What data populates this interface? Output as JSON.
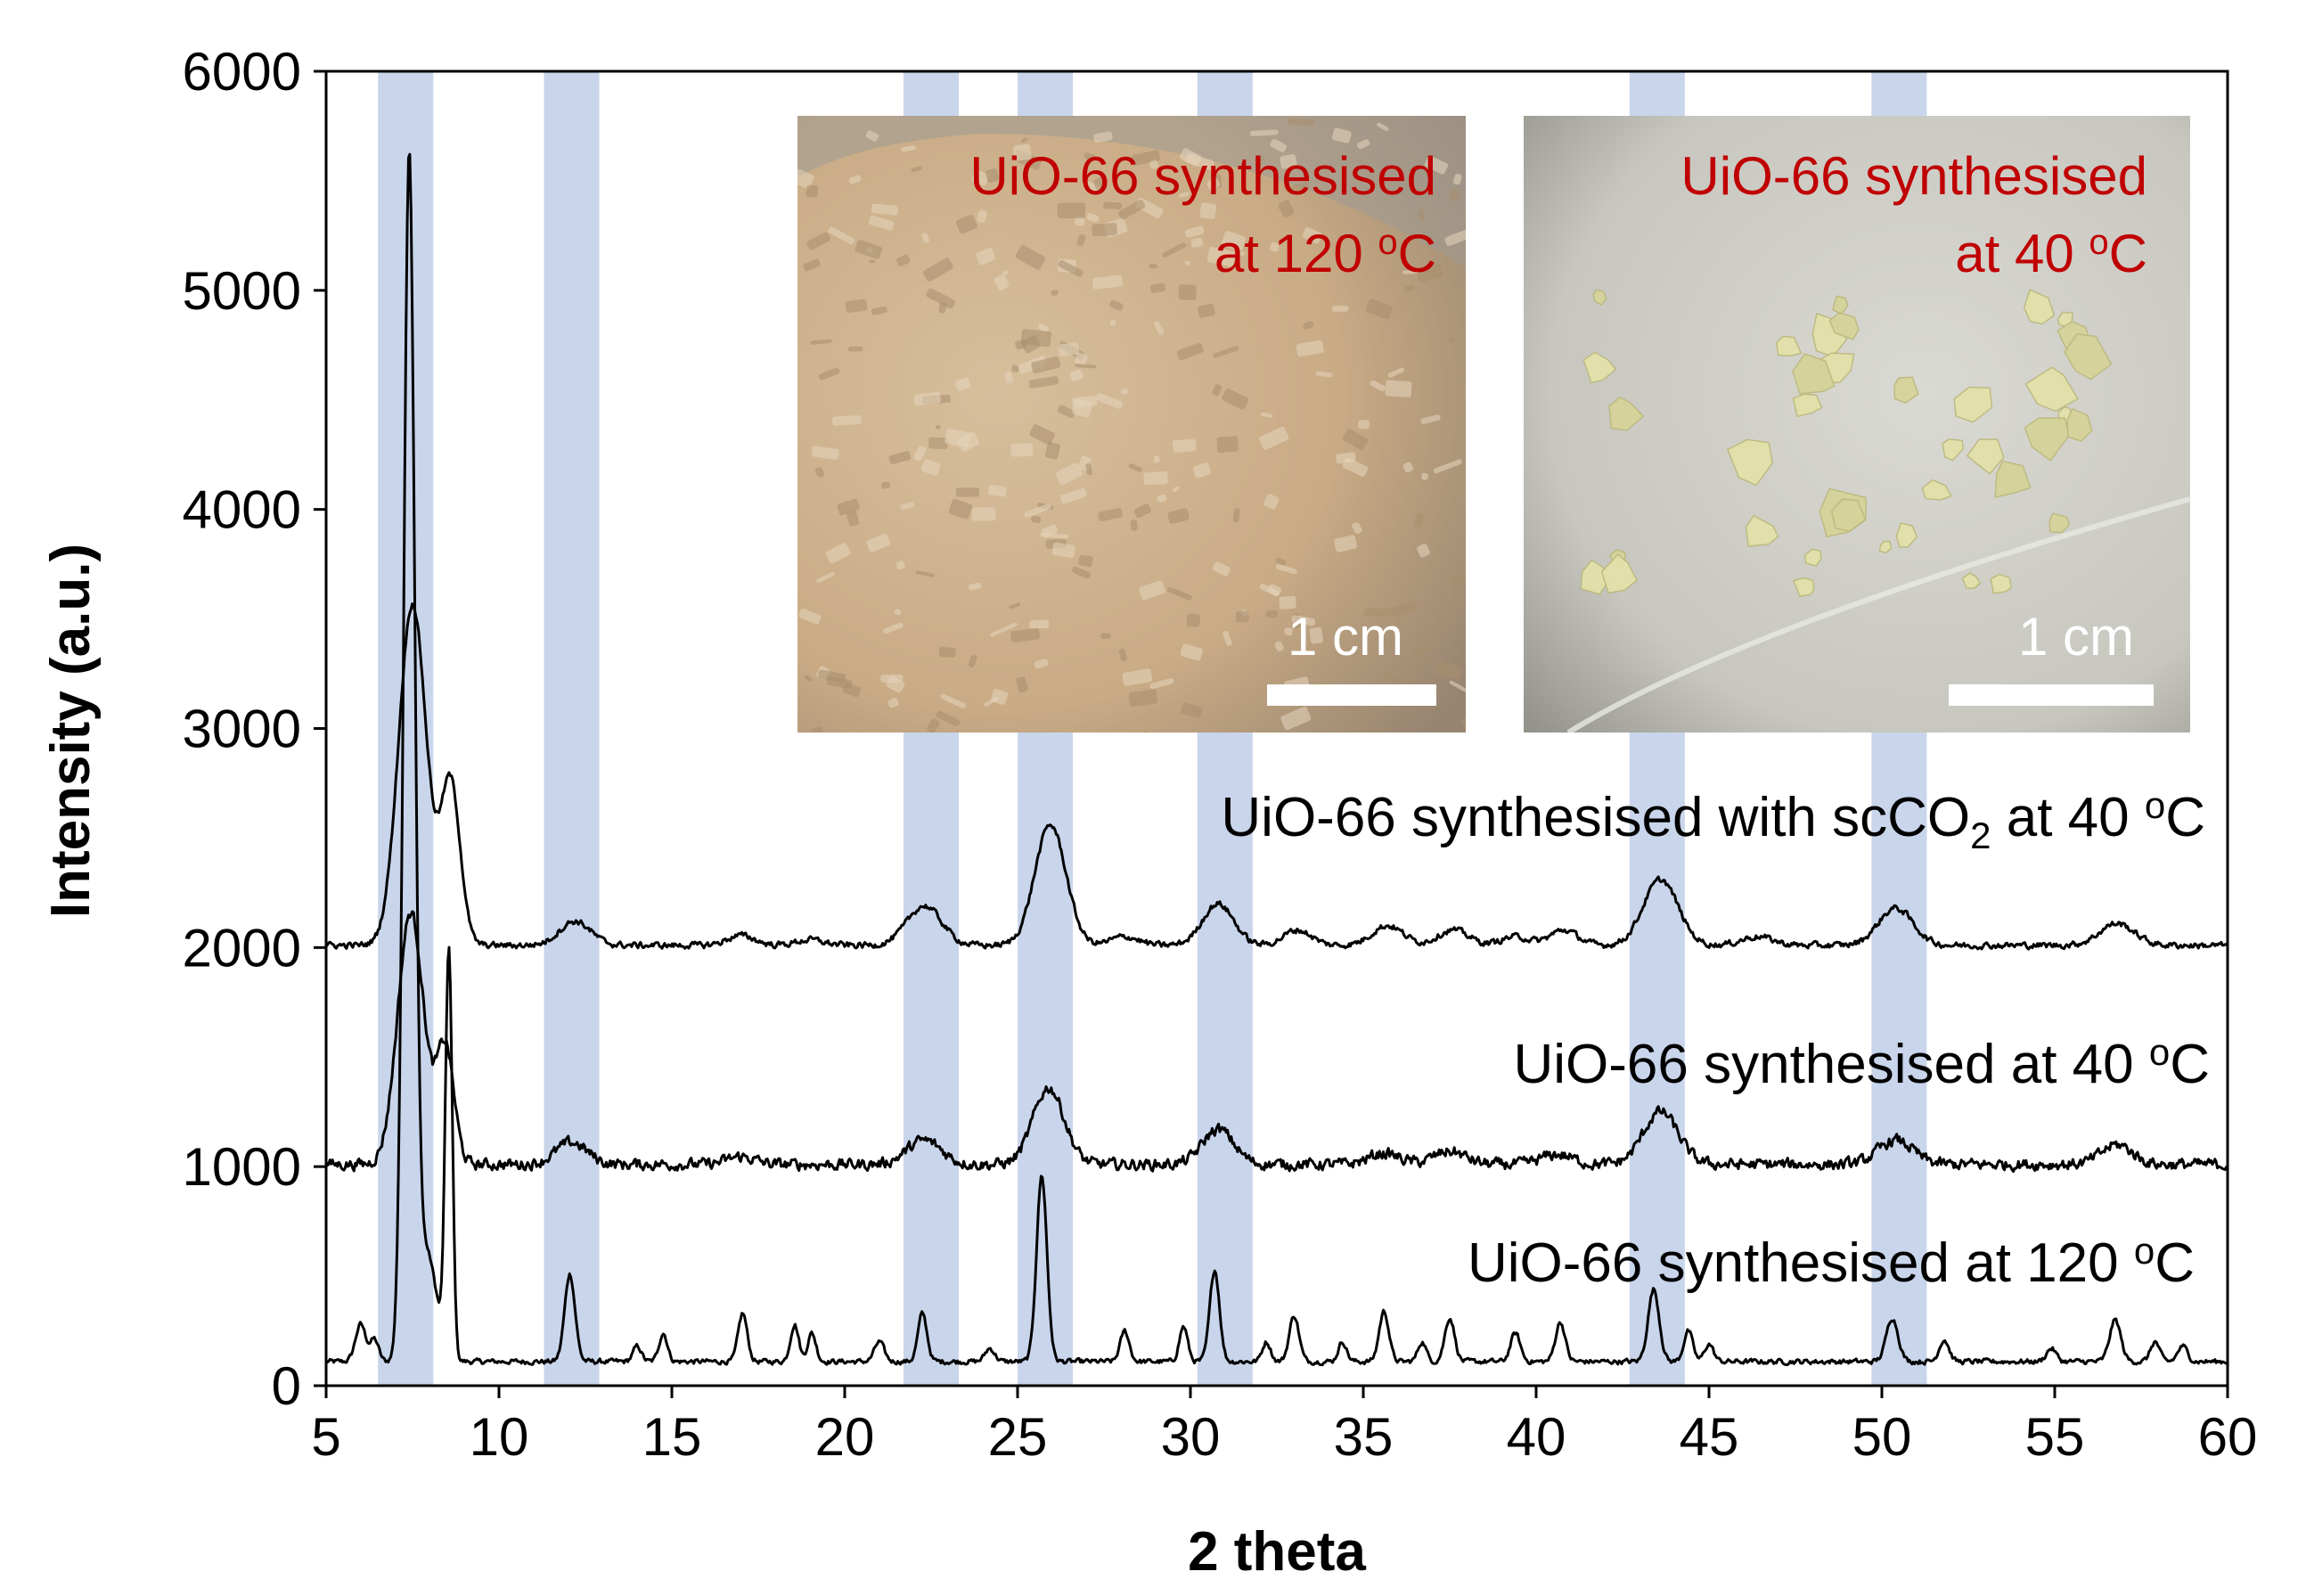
{
  "chart_data": {
    "type": "line",
    "xlabel": "2 theta",
    "ylabel": "Intensity (a.u.)",
    "xlim": [
      5,
      60
    ],
    "ylim": [
      0,
      6000
    ],
    "xticks": [
      5,
      10,
      15,
      20,
      25,
      30,
      35,
      40,
      45,
      50,
      55,
      60
    ],
    "yticks": [
      0,
      1000,
      2000,
      3000,
      4000,
      5000,
      6000
    ],
    "grid": false,
    "highlight_bands": [
      [
        6.5,
        8.1
      ],
      [
        11.3,
        12.9
      ],
      [
        21.7,
        23.3
      ],
      [
        25.0,
        26.6
      ],
      [
        30.2,
        31.8
      ],
      [
        42.7,
        44.3
      ],
      [
        49.7,
        51.3
      ]
    ],
    "highlight_color": "#c9d5ea",
    "line_color": "#000000",
    "series": [
      {
        "name": "UiO-66 synthesised at 120 °C",
        "label_parts": [
          "UiO-66 synthesised at 120 ",
          "o",
          "C"
        ],
        "baseline": 110,
        "noise": 18,
        "peaks": [
          [
            6.0,
            170,
            0.15
          ],
          [
            6.4,
            100,
            0.12
          ],
          [
            7.4,
            5420,
            0.16
          ],
          [
            7.9,
            500,
            0.3
          ],
          [
            8.55,
            1850,
            0.1
          ],
          [
            12.05,
            400,
            0.15
          ],
          [
            14.0,
            70,
            0.12
          ],
          [
            14.75,
            130,
            0.12
          ],
          [
            17.05,
            220,
            0.13
          ],
          [
            18.55,
            170,
            0.12
          ],
          [
            19.05,
            130,
            0.12
          ],
          [
            21.0,
            90,
            0.14
          ],
          [
            22.25,
            220,
            0.13
          ],
          [
            24.2,
            60,
            0.14
          ],
          [
            25.7,
            850,
            0.15
          ],
          [
            28.1,
            140,
            0.13
          ],
          [
            29.8,
            160,
            0.12
          ],
          [
            30.7,
            420,
            0.14
          ],
          [
            32.2,
            90,
            0.12
          ],
          [
            33.0,
            210,
            0.14
          ],
          [
            34.4,
            90,
            0.12
          ],
          [
            35.6,
            230,
            0.14
          ],
          [
            36.7,
            90,
            0.12
          ],
          [
            37.5,
            200,
            0.14
          ],
          [
            39.4,
            130,
            0.14
          ],
          [
            40.7,
            180,
            0.14
          ],
          [
            43.4,
            330,
            0.16
          ],
          [
            44.4,
            140,
            0.13
          ],
          [
            45.0,
            80,
            0.13
          ],
          [
            50.3,
            200,
            0.17
          ],
          [
            51.8,
            100,
            0.14
          ],
          [
            54.9,
            60,
            0.14
          ],
          [
            56.75,
            190,
            0.16
          ],
          [
            57.9,
            90,
            0.13
          ],
          [
            58.7,
            70,
            0.14
          ]
        ]
      },
      {
        "name": "UiO-66 synthesised at 40 °C",
        "label_parts": [
          "UiO-66 synthesised at 40 ",
          "o",
          "C"
        ],
        "baseline": 1010,
        "noise": 40,
        "peaks": [
          [
            7.45,
            1150,
            0.38
          ],
          [
            8.45,
            530,
            0.25
          ],
          [
            12.1,
            100,
            0.45
          ],
          [
            17.0,
            35,
            0.4
          ],
          [
            22.3,
            110,
            0.5
          ],
          [
            25.9,
            350,
            0.45
          ],
          [
            30.8,
            160,
            0.45
          ],
          [
            35.6,
            50,
            0.45
          ],
          [
            37.5,
            60,
            0.45
          ],
          [
            40.6,
            45,
            0.45
          ],
          [
            43.6,
            240,
            0.5
          ],
          [
            50.4,
            110,
            0.5
          ],
          [
            56.8,
            90,
            0.45
          ]
        ]
      },
      {
        "name": "UiO-66 synthesised with scCO2 at 40 °C",
        "label_parts": [
          "UiO-66 synthesised with scCO",
          "2",
          " at 40 ",
          "o",
          "C"
        ],
        "baseline": 2010,
        "noise": 22,
        "peaks": [
          [
            7.5,
            1560,
            0.4
          ],
          [
            8.6,
            740,
            0.28
          ],
          [
            12.2,
            110,
            0.45
          ],
          [
            17.0,
            45,
            0.4
          ],
          [
            19.0,
            25,
            0.4
          ],
          [
            22.3,
            180,
            0.5
          ],
          [
            25.95,
            550,
            0.45
          ],
          [
            28.1,
            40,
            0.4
          ],
          [
            30.8,
            190,
            0.45
          ],
          [
            33.1,
            70,
            0.4
          ],
          [
            35.7,
            90,
            0.45
          ],
          [
            37.6,
            70,
            0.45
          ],
          [
            39.4,
            40,
            0.4
          ],
          [
            40.8,
            70,
            0.4
          ],
          [
            43.6,
            300,
            0.5
          ],
          [
            46.4,
            40,
            0.45
          ],
          [
            50.4,
            170,
            0.5
          ],
          [
            56.8,
            100,
            0.5
          ]
        ]
      }
    ]
  },
  "insets": [
    {
      "caption_line1": "UiO-66 synthesised",
      "caption_line2_parts": [
        "at 120 ",
        "o",
        "C"
      ],
      "scale_bar": "1 cm",
      "background": "#c8ab86"
    },
    {
      "caption_line1": "UiO-66 synthesised",
      "caption_line2_parts": [
        "at 40 ",
        "o",
        "C"
      ],
      "scale_bar": "1 cm",
      "background": "#c6c6bd"
    }
  ]
}
